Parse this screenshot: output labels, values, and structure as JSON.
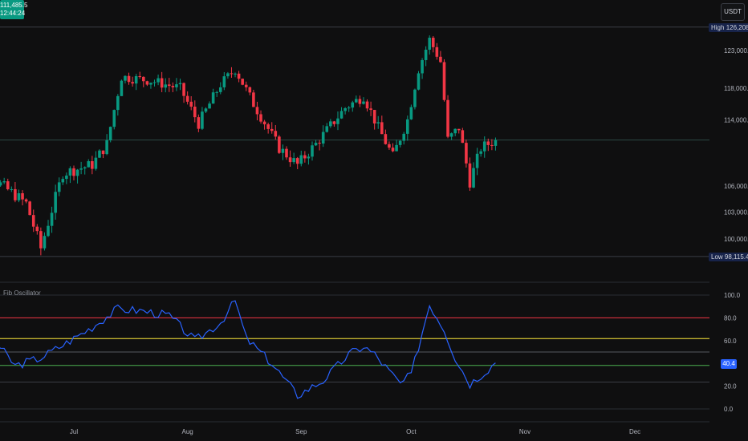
{
  "quote_currency": "USDT",
  "price_panel": {
    "y_ticks": [
      {
        "label": "123,000.0",
        "value": 123000
      },
      {
        "label": "118,000.0",
        "value": 118000
      },
      {
        "label": "114,000.0",
        "value": 114000
      },
      {
        "label": "106,000.0",
        "value": 106000
      },
      {
        "label": "103,000.0",
        "value": 103000
      },
      {
        "label": "100,000.0",
        "value": 100000
      }
    ],
    "high_label": "High",
    "high_value": "126,208.5",
    "low_label": "Low",
    "low_value": "98,115.4",
    "last_price": "111,485.5",
    "countdown": "12:44:24"
  },
  "oscillator": {
    "title": "Fib Oscillator",
    "y_ticks": [
      "100.0",
      "80.0",
      "60.0",
      "20.0",
      "0.0"
    ],
    "current_value": "40.4"
  },
  "x_ticks": [
    "Jul",
    "Aug",
    "Sep",
    "Oct",
    "Nov",
    "Dec"
  ],
  "colors": {
    "background": "#0f0f10",
    "up": "#089981",
    "down": "#f23645",
    "oscillator_line": "#2962ff",
    "level_80": "#f23645",
    "level_61": "#ffeb3b",
    "level_38": "#4caf50",
    "grid": "#1c1d21"
  },
  "chart_data": [
    {
      "type": "candlestick",
      "xlabel": "",
      "ylabel": "",
      "ylim": [
        97000,
        127500
      ],
      "high": 126208.5,
      "low": 98115.4,
      "last": 111485.5,
      "close_path": [
        {
          "date": "2025-06-01",
          "close": 107000
        },
        {
          "date": "2025-06-10",
          "close": 106500
        },
        {
          "date": "2025-06-18",
          "close": 104000
        },
        {
          "date": "2025-06-22",
          "close": 99000
        },
        {
          "date": "2025-06-28",
          "close": 107500
        },
        {
          "date": "2025-07-06",
          "close": 108500
        },
        {
          "date": "2025-07-10",
          "close": 111000
        },
        {
          "date": "2025-07-14",
          "close": 119500
        },
        {
          "date": "2025-07-22",
          "close": 119000
        },
        {
          "date": "2025-07-30",
          "close": 118000
        },
        {
          "date": "2025-08-04",
          "close": 113500
        },
        {
          "date": "2025-08-10",
          "close": 118500
        },
        {
          "date": "2025-08-14",
          "close": 120500
        },
        {
          "date": "2025-08-19",
          "close": 116000
        },
        {
          "date": "2025-08-26",
          "close": 110500
        },
        {
          "date": "2025-08-31",
          "close": 108500
        },
        {
          "date": "2025-09-05",
          "close": 111000
        },
        {
          "date": "2025-09-13",
          "close": 115500
        },
        {
          "date": "2025-09-18",
          "close": 117000
        },
        {
          "date": "2025-09-22",
          "close": 113000
        },
        {
          "date": "2025-09-26",
          "close": 109500
        },
        {
          "date": "2025-09-30",
          "close": 114000
        },
        {
          "date": "2025-10-03",
          "close": 120500
        },
        {
          "date": "2025-10-06",
          "close": 124500
        },
        {
          "date": "2025-10-09",
          "close": 121500
        },
        {
          "date": "2025-10-11",
          "close": 111500
        },
        {
          "date": "2025-10-14",
          "close": 113000
        },
        {
          "date": "2025-10-17",
          "close": 106500
        },
        {
          "date": "2025-10-20",
          "close": 110500
        },
        {
          "date": "2025-10-24",
          "close": 111485.5
        }
      ]
    },
    {
      "type": "line",
      "title": "Fib Oscillator",
      "xlabel": "",
      "ylabel": "",
      "ylim": [
        0,
        100
      ],
      "levels": [
        80,
        61.8,
        50,
        38.2,
        23.6
      ],
      "x": [
        "2025-06-01",
        "2025-06-08",
        "2025-06-15",
        "2025-06-22",
        "2025-06-29",
        "2025-07-06",
        "2025-07-13",
        "2025-07-20",
        "2025-07-27",
        "2025-08-03",
        "2025-08-10",
        "2025-08-14",
        "2025-08-17",
        "2025-08-24",
        "2025-08-31",
        "2025-09-07",
        "2025-09-14",
        "2025-09-18",
        "2025-09-21",
        "2025-09-28",
        "2025-10-01",
        "2025-10-06",
        "2025-10-10",
        "2025-10-13",
        "2025-10-17",
        "2025-10-20",
        "2025-10-24"
      ],
      "values": [
        82,
        65,
        38,
        45,
        58,
        72,
        88,
        86,
        82,
        60,
        76,
        95,
        62,
        40,
        12,
        25,
        48,
        55,
        48,
        22,
        30,
        92,
        70,
        45,
        22,
        30,
        40.4
      ]
    }
  ]
}
